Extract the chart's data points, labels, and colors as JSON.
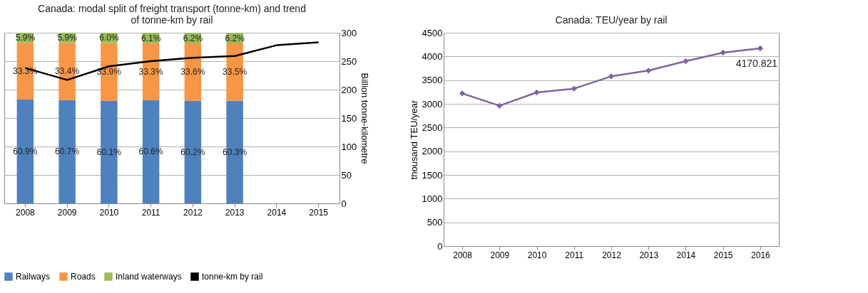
{
  "chart_data": [
    {
      "type": "bar",
      "stacked": true,
      "title": "Canada: modal split of freight transport (tonne-km) and trend of tonne-km by rail",
      "y2label": "Billion tonne-kilometre",
      "categories": [
        "2008",
        "2009",
        "2010",
        "2011",
        "2012",
        "2013",
        "2014",
        "2015"
      ],
      "series": [
        {
          "name": "Railways",
          "color": "#4f81bd",
          "values": [
            60.9,
            60.7,
            60.1,
            60.6,
            60.2,
            60.3,
            null,
            null
          ],
          "value_labels": [
            "60.9%",
            "60.7%",
            "60.1%",
            "60.6%",
            "60.2%",
            "60.3%",
            null,
            null
          ]
        },
        {
          "name": "Roads",
          "color": "#f79646",
          "values": [
            33.3,
            33.4,
            33.9,
            33.3,
            33.6,
            33.5,
            null,
            null
          ],
          "value_labels": [
            "33.3%",
            "33.4%",
            "33.9%",
            "33.3%",
            "33.6%",
            "33.5%",
            null,
            null
          ]
        },
        {
          "name": "Inland waterways",
          "color": "#9bbb59",
          "values": [
            5.9,
            5.9,
            6.0,
            6.1,
            6.2,
            6.2,
            null,
            null
          ],
          "value_labels": [
            "5.9%",
            "5.9%",
            "6.0%",
            "6.1%",
            "6.2%",
            "6.2%",
            null,
            null
          ]
        },
        {
          "name": "tonne-km by rail",
          "type": "line",
          "axis": "y2",
          "color": "#000000",
          "values": [
            238,
            217,
            241,
            250,
            256,
            259,
            278,
            283
          ]
        }
      ],
      "ylim": [
        0,
        100.1
      ],
      "y2lim": [
        0,
        300
      ],
      "y2ticks": [
        0,
        50,
        100,
        150,
        200,
        250,
        300
      ],
      "grid": "y",
      "legend": "bottom"
    },
    {
      "type": "line",
      "title": "Canada: TEU/year by rail",
      "ylabel": "thousand TEU/year",
      "marker": "diamond",
      "categories": [
        "2008",
        "2009",
        "2010",
        "2011",
        "2012",
        "2013",
        "2014",
        "2015",
        "2016"
      ],
      "series": [
        {
          "color": "#8064a2",
          "values": [
            3220,
            2960,
            3240,
            3320,
            3580,
            3700,
            3900,
            4080,
            4170.821
          ],
          "value_labels": [
            null,
            null,
            null,
            null,
            null,
            null,
            null,
            null,
            "4170.821"
          ]
        }
      ],
      "ylim": [
        0,
        4500
      ],
      "yticks": [
        0,
        500,
        1000,
        1500,
        2000,
        2500,
        3000,
        3500,
        4000,
        4500
      ],
      "grid": "y"
    }
  ]
}
